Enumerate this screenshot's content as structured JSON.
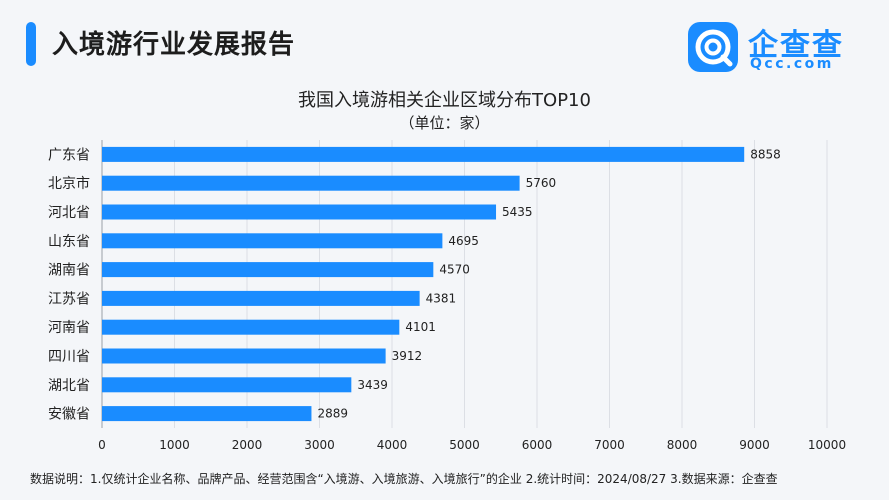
{
  "header": {
    "title": "入境游行业发展报告"
  },
  "logo": {
    "name": "企查查",
    "domain": "Qcc.com"
  },
  "footnote": "数据说明：1.仅统计企业名称、品牌产品、经营范围含“入境游、入境旅游、入境旅行”的企业   2.统计时间：2024/08/27   3.数据来源：企查查",
  "colors": {
    "bar": "#1a8cff",
    "accent": "#1a8cff",
    "background": "#f4f6f9"
  },
  "chart_data": {
    "type": "bar",
    "orientation": "horizontal",
    "title": "我国入境游相关企业区域分布TOP10",
    "subtitle": "（单位：家）",
    "categories": [
      "广东省",
      "北京市",
      "河北省",
      "山东省",
      "湖南省",
      "江苏省",
      "河南省",
      "四川省",
      "湖北省",
      "安徽省"
    ],
    "values": [
      8858,
      5760,
      5435,
      4695,
      4570,
      4381,
      4101,
      3912,
      3439,
      2889
    ],
    "xlim": [
      0,
      10000
    ],
    "xticks": [
      0,
      1000,
      2000,
      3000,
      4000,
      5000,
      6000,
      7000,
      8000,
      9000,
      10000
    ],
    "grid": "vertical",
    "legend": "none"
  }
}
